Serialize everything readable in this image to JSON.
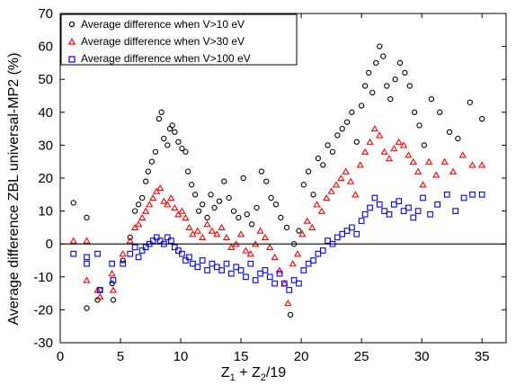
{
  "chart_data": {
    "type": "scatter",
    "xlabel_main": "Z",
    "xlabel_sub1": "1",
    "xlabel_mid": " + Z",
    "xlabel_sub2": "2",
    "xlabel_tail": "/19",
    "ylabel": "Average difference ZBL universal-MP2 (%)",
    "xlim": [
      0,
      37
    ],
    "ylim": [
      -30,
      70
    ],
    "xticks": [
      0,
      5,
      10,
      15,
      20,
      25,
      30,
      35
    ],
    "yticks": [
      -30,
      -20,
      -10,
      0,
      10,
      20,
      30,
      40,
      50,
      60,
      70
    ],
    "zero_line": true,
    "grid": false,
    "legend_position": "top-left",
    "series": [
      {
        "name": "Average difference when V>10 eV",
        "marker": "circle",
        "color": "#000000",
        "points": [
          [
            1.1,
            12.5
          ],
          [
            2.2,
            8
          ],
          [
            2.2,
            -19.5
          ],
          [
            3.1,
            -17
          ],
          [
            3.3,
            -14
          ],
          [
            4.3,
            -12
          ],
          [
            4.4,
            -17
          ],
          [
            5.2,
            -5
          ],
          [
            5.8,
            2
          ],
          [
            6.2,
            10
          ],
          [
            6.5,
            12
          ],
          [
            6.8,
            14
          ],
          [
            7.1,
            19
          ],
          [
            7.3,
            22
          ],
          [
            7.6,
            25
          ],
          [
            7.9,
            28
          ],
          [
            8.2,
            38
          ],
          [
            8.4,
            40
          ],
          [
            8.6,
            32
          ],
          [
            8.9,
            30
          ],
          [
            9.1,
            35
          ],
          [
            9.3,
            36
          ],
          [
            9.5,
            34
          ],
          [
            9.8,
            31
          ],
          [
            10.1,
            29
          ],
          [
            10.4,
            28
          ],
          [
            10.6,
            22
          ],
          [
            10.9,
            18
          ],
          [
            11.2,
            15
          ],
          [
            11.5,
            10
          ],
          [
            11.8,
            12
          ],
          [
            12.2,
            8
          ],
          [
            12.5,
            15
          ],
          [
            12.8,
            11
          ],
          [
            13.2,
            13
          ],
          [
            13.6,
            19
          ],
          [
            14.0,
            14
          ],
          [
            14.4,
            10
          ],
          [
            14.8,
            8
          ],
          [
            15.2,
            20
          ],
          [
            15.5,
            9
          ],
          [
            15.9,
            6
          ],
          [
            16.3,
            11
          ],
          [
            16.7,
            22
          ],
          [
            17.1,
            19
          ],
          [
            17.5,
            14
          ],
          [
            17.9,
            12
          ],
          [
            18.3,
            8
          ],
          [
            18.8,
            5
          ],
          [
            19.1,
            -21.5
          ],
          [
            19.4,
            0
          ],
          [
            19.8,
            4
          ],
          [
            20.2,
            18
          ],
          [
            20.6,
            22
          ],
          [
            21.0,
            15
          ],
          [
            21.4,
            26
          ],
          [
            21.8,
            24
          ],
          [
            22.2,
            30
          ],
          [
            22.6,
            28
          ],
          [
            23.0,
            33
          ],
          [
            23.4,
            35
          ],
          [
            23.8,
            37
          ],
          [
            24.2,
            40
          ],
          [
            24.6,
            31
          ],
          [
            25.0,
            42
          ],
          [
            25.3,
            48
          ],
          [
            25.6,
            52
          ],
          [
            25.9,
            46
          ],
          [
            26.2,
            55
          ],
          [
            26.5,
            60
          ],
          [
            26.8,
            57
          ],
          [
            27.1,
            48
          ],
          [
            27.4,
            44
          ],
          [
            27.8,
            50
          ],
          [
            28.2,
            55
          ],
          [
            28.6,
            52
          ],
          [
            29.0,
            48
          ],
          [
            29.4,
            40
          ],
          [
            29.8,
            36
          ],
          [
            30.2,
            30
          ],
          [
            30.8,
            44
          ],
          [
            31.5,
            40
          ],
          [
            32.3,
            34
          ],
          [
            33.0,
            32
          ],
          [
            34.0,
            43
          ],
          [
            35.0,
            38
          ]
        ]
      },
      {
        "name": "Average difference when V>30 eV",
        "marker": "triangle",
        "color": "#ff0000",
        "points": [
          [
            1.1,
            1
          ],
          [
            2.2,
            1
          ],
          [
            2.2,
            -11
          ],
          [
            3.1,
            -14
          ],
          [
            3.3,
            -16
          ],
          [
            4.3,
            -9
          ],
          [
            4.4,
            -14
          ],
          [
            5.2,
            -3
          ],
          [
            5.8,
            1
          ],
          [
            6.2,
            5
          ],
          [
            6.5,
            6
          ],
          [
            6.8,
            8
          ],
          [
            7.1,
            10
          ],
          [
            7.4,
            12
          ],
          [
            7.7,
            14
          ],
          [
            8.0,
            16
          ],
          [
            8.3,
            17
          ],
          [
            8.6,
            13
          ],
          [
            8.9,
            12
          ],
          [
            9.2,
            14
          ],
          [
            9.5,
            11
          ],
          [
            9.8,
            9
          ],
          [
            10.1,
            10
          ],
          [
            10.4,
            8
          ],
          [
            10.7,
            5
          ],
          [
            11.0,
            3
          ],
          [
            11.4,
            4
          ],
          [
            11.8,
            2
          ],
          [
            12.2,
            6
          ],
          [
            12.6,
            4
          ],
          [
            13.0,
            3
          ],
          [
            13.4,
            5
          ],
          [
            13.8,
            2
          ],
          [
            14.2,
            -1
          ],
          [
            14.6,
            0
          ],
          [
            15.0,
            3
          ],
          [
            15.4,
            -2
          ],
          [
            15.8,
            -3
          ],
          [
            16.2,
            0
          ],
          [
            16.6,
            4
          ],
          [
            17.0,
            2
          ],
          [
            17.4,
            -1
          ],
          [
            17.8,
            -4
          ],
          [
            18.2,
            -8
          ],
          [
            18.6,
            -12
          ],
          [
            18.9,
            -18
          ],
          [
            19.3,
            -6
          ],
          [
            19.7,
            -3
          ],
          [
            20.1,
            3
          ],
          [
            20.5,
            7
          ],
          [
            20.9,
            5
          ],
          [
            21.3,
            12
          ],
          [
            21.7,
            10
          ],
          [
            22.1,
            14
          ],
          [
            22.5,
            16
          ],
          [
            22.9,
            18
          ],
          [
            23.3,
            20
          ],
          [
            23.7,
            22
          ],
          [
            24.1,
            19
          ],
          [
            24.5,
            15
          ],
          [
            24.9,
            24
          ],
          [
            25.3,
            28
          ],
          [
            25.7,
            31
          ],
          [
            26.1,
            35
          ],
          [
            26.5,
            33
          ],
          [
            26.9,
            28
          ],
          [
            27.3,
            26
          ],
          [
            27.7,
            29
          ],
          [
            28.1,
            31
          ],
          [
            28.5,
            30
          ],
          [
            28.9,
            27
          ],
          [
            29.3,
            25
          ],
          [
            29.7,
            22
          ],
          [
            30.1,
            18
          ],
          [
            30.6,
            25
          ],
          [
            31.2,
            21
          ],
          [
            31.9,
            25
          ],
          [
            32.6,
            22
          ],
          [
            33.4,
            27
          ],
          [
            34.2,
            24
          ],
          [
            35.0,
            24
          ]
        ]
      },
      {
        "name": "Average difference when V>100 eV",
        "marker": "square",
        "color": "#0000ff",
        "points": [
          [
            1.1,
            -3
          ],
          [
            2.2,
            -4
          ],
          [
            2.2,
            -6
          ],
          [
            3.1,
            -3
          ],
          [
            3.3,
            -14
          ],
          [
            4.3,
            -6
          ],
          [
            4.4,
            -11
          ],
          [
            5.2,
            -6
          ],
          [
            5.8,
            -3
          ],
          [
            6.2,
            -1
          ],
          [
            6.5,
            -4
          ],
          [
            6.8,
            -2
          ],
          [
            7.1,
            -1
          ],
          [
            7.4,
            0
          ],
          [
            7.7,
            1
          ],
          [
            8.0,
            2
          ],
          [
            8.3,
            1
          ],
          [
            8.6,
            0
          ],
          [
            8.9,
            2
          ],
          [
            9.2,
            1
          ],
          [
            9.5,
            -1
          ],
          [
            9.8,
            -2
          ],
          [
            10.1,
            -3
          ],
          [
            10.4,
            -5
          ],
          [
            10.7,
            -4
          ],
          [
            11.0,
            -6
          ],
          [
            11.4,
            -7
          ],
          [
            11.8,
            -5
          ],
          [
            12.2,
            -8
          ],
          [
            12.6,
            -6
          ],
          [
            13.0,
            -7
          ],
          [
            13.4,
            -8
          ],
          [
            13.8,
            -6
          ],
          [
            14.2,
            -9
          ],
          [
            14.6,
            -7
          ],
          [
            15.0,
            -8
          ],
          [
            15.4,
            -10
          ],
          [
            15.8,
            -6
          ],
          [
            16.2,
            -11
          ],
          [
            16.6,
            -9
          ],
          [
            17.0,
            -8
          ],
          [
            17.4,
            -10
          ],
          [
            17.8,
            -12
          ],
          [
            18.2,
            -9
          ],
          [
            18.6,
            -12
          ],
          [
            19.0,
            -14
          ],
          [
            19.4,
            -11
          ],
          [
            19.8,
            -12
          ],
          [
            20.2,
            -8
          ],
          [
            20.6,
            -6
          ],
          [
            21.0,
            -5
          ],
          [
            21.4,
            -3
          ],
          [
            21.8,
            -2
          ],
          [
            22.2,
            1
          ],
          [
            22.6,
            0
          ],
          [
            23.0,
            2
          ],
          [
            23.4,
            3
          ],
          [
            23.8,
            4
          ],
          [
            24.2,
            5
          ],
          [
            24.6,
            3
          ],
          [
            25.0,
            7
          ],
          [
            25.3,
            9
          ],
          [
            25.7,
            11
          ],
          [
            26.1,
            14
          ],
          [
            26.5,
            12
          ],
          [
            26.9,
            10
          ],
          [
            27.3,
            9
          ],
          [
            27.7,
            12
          ],
          [
            28.1,
            13
          ],
          [
            28.5,
            10
          ],
          [
            28.9,
            11
          ],
          [
            29.3,
            8
          ],
          [
            29.7,
            10
          ],
          [
            30.1,
            14
          ],
          [
            30.7,
            9
          ],
          [
            31.3,
            12
          ],
          [
            32.1,
            15
          ],
          [
            32.8,
            10
          ],
          [
            33.5,
            14
          ],
          [
            34.2,
            15
          ],
          [
            35.0,
            15
          ]
        ]
      }
    ]
  }
}
